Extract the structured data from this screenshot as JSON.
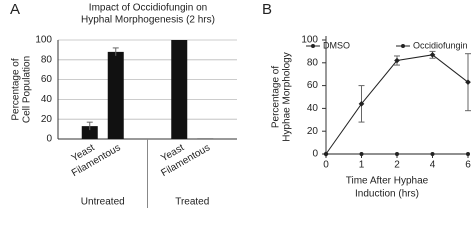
{
  "chart_data": [
    {
      "type": "bar",
      "panel": "A",
      "title": [
        "Impact of Occidiofungin on",
        "Hyphal Morphogenesis (2 hrs)"
      ],
      "ylabel": [
        "Percentage of",
        "Cell Population"
      ],
      "categories": [
        "Yeast",
        "Filamentous",
        "Yeast",
        "Filamentous"
      ],
      "groups": [
        "Untreated",
        "Treated"
      ],
      "values": [
        13,
        88,
        100,
        0.5
      ],
      "errors": [
        4,
        4,
        0,
        0
      ],
      "color": "#111111",
      "ylim": [
        0,
        100
      ],
      "yticks": [
        0,
        20,
        40,
        60,
        80,
        100
      ],
      "grid": true
    },
    {
      "type": "line",
      "panel": "B",
      "ylabel": [
        "Percentage of",
        "Hyphae Morphology"
      ],
      "xlabel": [
        "Time After Hyphae",
        "Induction (hrs)"
      ],
      "categories": [
        "0",
        "1",
        "2",
        "4",
        "6"
      ],
      "series": [
        {
          "name": "DMSO",
          "color": "#222222",
          "values": [
            0,
            44,
            82,
            87,
            63
          ],
          "errors": [
            0,
            16,
            4,
            3,
            25
          ]
        },
        {
          "name": "Occidiofungin",
          "color": "#222222",
          "values": [
            0,
            0,
            0,
            0,
            0
          ],
          "errors": [
            0,
            0,
            0,
            0,
            0
          ]
        }
      ],
      "ylim": [
        0,
        100
      ],
      "yticks": [
        0,
        20,
        40,
        60,
        80,
        100
      ],
      "grid": false,
      "legend": "top"
    }
  ]
}
